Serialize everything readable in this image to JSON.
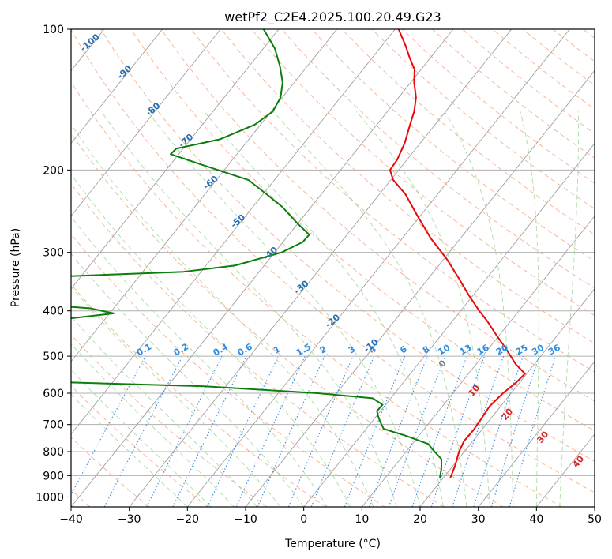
{
  "chart_data": {
    "type": "skew-t",
    "title": "wetPf2_C2E4.2025.100.20.49.G23",
    "xlabel": "Temperature (°C)",
    "ylabel": "Pressure (hPa)",
    "xlim": [
      -40,
      50
    ],
    "ylim": [
      1050,
      100
    ],
    "y_scale": "log",
    "x_ticks": [
      -40,
      -30,
      -20,
      -10,
      0,
      10,
      20,
      30,
      40,
      50
    ],
    "x_tick_labels": [
      "−40",
      "−30",
      "−20",
      "−10",
      "0",
      "10",
      "20",
      "30",
      "40",
      "50"
    ],
    "y_ticks": [
      100,
      200,
      300,
      400,
      500,
      600,
      700,
      800,
      900,
      1000
    ],
    "y_tick_labels": [
      "100",
      "200",
      "300",
      "400",
      "500",
      "600",
      "700",
      "800",
      "900",
      "1000"
    ],
    "grid": true,
    "series": [
      {
        "color": "#e8090a",
        "points": [
          [
            910,
            21.2
          ],
          [
            860,
            20.4
          ],
          [
            800,
            19.1
          ],
          [
            760,
            18.5
          ],
          [
            720,
            18.6
          ],
          [
            680,
            18.4
          ],
          [
            640,
            18.1
          ],
          [
            600,
            18.6
          ],
          [
            570,
            19.4
          ],
          [
            545,
            19.7
          ],
          [
            520,
            16.8
          ],
          [
            480,
            12.8
          ],
          [
            450,
            9.4
          ],
          [
            420,
            5.9
          ],
          [
            400,
            3.2
          ],
          [
            370,
            -0.8
          ],
          [
            340,
            -4.9
          ],
          [
            310,
            -9.5
          ],
          [
            280,
            -15.1
          ],
          [
            250,
            -20.6
          ],
          [
            225,
            -25.6
          ],
          [
            210,
            -29.6
          ],
          [
            200,
            -31.5
          ],
          [
            190,
            -31.7
          ],
          [
            175,
            -32.7
          ],
          [
            160,
            -34.3
          ],
          [
            150,
            -35.4
          ],
          [
            140,
            -37.0
          ],
          [
            130,
            -39.4
          ],
          [
            122,
            -41.1
          ],
          [
            115,
            -43.6
          ],
          [
            108,
            -46.1
          ],
          [
            100,
            -49.4
          ]
        ]
      },
      {
        "color": "#0b7e0b",
        "points": [
          [
            910,
            19.4
          ],
          [
            870,
            18.4
          ],
          [
            830,
            17.1
          ],
          [
            800,
            14.9
          ],
          [
            770,
            12.7
          ],
          [
            740,
            7.8
          ],
          [
            715,
            3.0
          ],
          [
            690,
            1.4
          ],
          [
            670,
            0.2
          ],
          [
            655,
            -0.6
          ],
          [
            635,
            -0.5
          ],
          [
            615,
            -3.1
          ],
          [
            600,
            -13.2
          ],
          [
            580,
            -33.6
          ],
          [
            565,
            -66.0
          ],
          [
            558,
            -76.0
          ],
          [
            545,
            -81.0
          ],
          [
            500,
            -83.0
          ],
          [
            490,
            -78.3
          ],
          [
            485,
            -72.0
          ],
          [
            478,
            -78.5
          ],
          [
            470,
            -82.0
          ],
          [
            450,
            -81.0
          ],
          [
            430,
            -82.0
          ],
          [
            425,
            -82.0
          ],
          [
            415,
            -66.0
          ],
          [
            405,
            -59.3
          ],
          [
            395,
            -64.0
          ],
          [
            380,
            -83.0
          ],
          [
            370,
            -86.0
          ],
          [
            355,
            -84.0
          ],
          [
            340,
            -79.0
          ],
          [
            330,
            -53.0
          ],
          [
            320,
            -45.0
          ],
          [
            300,
            -38.8
          ],
          [
            285,
            -36.6
          ],
          [
            275,
            -36.5
          ],
          [
            260,
            -40.1
          ],
          [
            240,
            -44.9
          ],
          [
            225,
            -49.5
          ],
          [
            210,
            -54.5
          ],
          [
            195,
            -64.5
          ],
          [
            185,
            -71.4
          ],
          [
            180,
            -71.2
          ],
          [
            172,
            -65.0
          ],
          [
            160,
            -61.0
          ],
          [
            150,
            -59.7
          ],
          [
            140,
            -60.3
          ],
          [
            130,
            -62.0
          ],
          [
            120,
            -64.7
          ],
          [
            110,
            -68.0
          ],
          [
            100,
            -72.6
          ]
        ]
      }
    ],
    "mixing_ratio_labels": [
      "0.1",
      "0.2",
      "0.4",
      "0.6",
      "1",
      "1.5",
      "2",
      "3",
      "4",
      "6",
      "8",
      "10",
      "13",
      "16",
      "20",
      "25",
      "30",
      "36"
    ],
    "isotherm_labels": [
      "-100",
      "-90",
      "-80",
      "-70",
      "-60",
      "-50",
      "-40",
      "-30",
      "-20",
      "-10"
    ],
    "moist_adiabat_labels": [
      "0",
      "10",
      "20",
      "30",
      "40"
    ]
  }
}
